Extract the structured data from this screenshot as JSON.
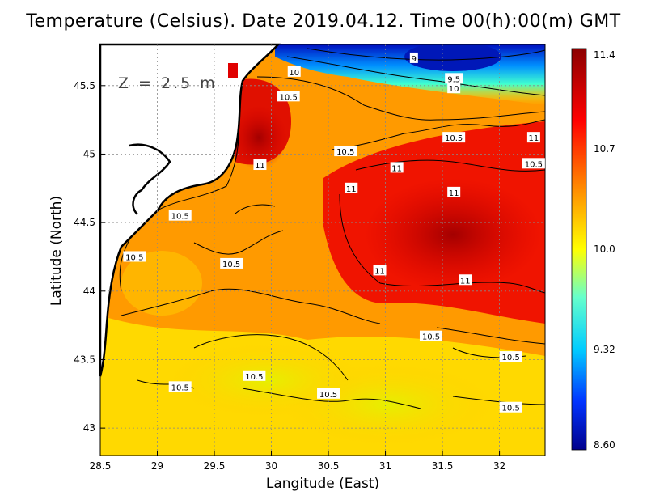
{
  "title": "Temperature (Celsius). Date 2019.04.12. Time 00(h):00(m)  GMT",
  "xlabel": "Langitude (East)",
  "ylabel": "Latitude (North)",
  "depth_label": "Z = 2.5 m",
  "colors": {
    "ramp": [
      "#00008b",
      "#0033ff",
      "#00ccff",
      "#66ffcc",
      "#ffff00",
      "#ff8c00",
      "#ff0000",
      "#8b0000"
    ],
    "land": "#ffffff",
    "coast": "#000000"
  },
  "chart_data": {
    "type": "heatmap",
    "title": "Temperature (Celsius). Date 2019.04.12. Time 00(h):00(m)  GMT",
    "xlabel": "Langitude (East)",
    "ylabel": "Latitude (North)",
    "xlim": [
      28.5,
      32.4
    ],
    "ylim": [
      42.8,
      45.8
    ],
    "x_ticks": [
      "28.5",
      "29",
      "29.5",
      "30",
      "30.5",
      "31",
      "31.5",
      "32"
    ],
    "y_ticks": [
      "43",
      "43.5",
      "44",
      "44.5",
      "45",
      "45.5"
    ],
    "colorbar": {
      "min": 8.6,
      "max": 11.4,
      "tick_labels": [
        "11.4",
        "10.7",
        "10.0",
        "9.32",
        "8.60"
      ]
    },
    "contour_labels": [
      {
        "text": "9",
        "lon": 31.25,
        "lat": 45.7
      },
      {
        "text": "10",
        "lon": 30.2,
        "lat": 45.6
      },
      {
        "text": "9.5",
        "lon": 31.6,
        "lat": 45.55
      },
      {
        "text": "10",
        "lon": 31.6,
        "lat": 45.48
      },
      {
        "text": "10.5",
        "lon": 30.15,
        "lat": 45.42
      },
      {
        "text": "10.5",
        "lon": 31.6,
        "lat": 45.12
      },
      {
        "text": "11",
        "lon": 32.3,
        "lat": 45.12
      },
      {
        "text": "10.5",
        "lon": 30.65,
        "lat": 45.02
      },
      {
        "text": "10.5",
        "lon": 32.3,
        "lat": 44.93
      },
      {
        "text": "11",
        "lon": 29.9,
        "lat": 44.92
      },
      {
        "text": "11",
        "lon": 31.1,
        "lat": 44.9
      },
      {
        "text": "11",
        "lon": 30.7,
        "lat": 44.75
      },
      {
        "text": "11",
        "lon": 31.6,
        "lat": 44.72
      },
      {
        "text": "10.5",
        "lon": 29.2,
        "lat": 44.55
      },
      {
        "text": "10.5",
        "lon": 28.8,
        "lat": 44.25
      },
      {
        "text": "10.5",
        "lon": 29.65,
        "lat": 44.2
      },
      {
        "text": "11",
        "lon": 30.95,
        "lat": 44.15
      },
      {
        "text": "11",
        "lon": 31.7,
        "lat": 44.08
      },
      {
        "text": "10.5",
        "lon": 31.4,
        "lat": 43.67
      },
      {
        "text": "10.5",
        "lon": 32.1,
        "lat": 43.52
      },
      {
        "text": "10.5",
        "lon": 29.85,
        "lat": 43.38
      },
      {
        "text": "10.5",
        "lon": 29.2,
        "lat": 43.3
      },
      {
        "text": "10.5",
        "lon": 30.5,
        "lat": 43.25
      },
      {
        "text": "10.5",
        "lon": 32.1,
        "lat": 43.15
      }
    ],
    "grid": true
  }
}
